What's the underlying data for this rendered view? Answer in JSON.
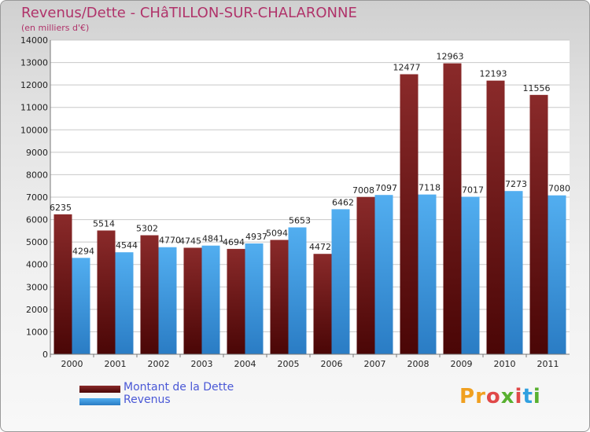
{
  "chart_data": {
    "type": "bar",
    "title": "Revenus/Dette - CHâTILLON-SUR-CHALARONNE",
    "subtitle": "(en milliers d'€)",
    "categories": [
      "2000",
      "2001",
      "2002",
      "2003",
      "2004",
      "2005",
      "2006",
      "2007",
      "2008",
      "2009",
      "2010",
      "2011"
    ],
    "series": [
      {
        "name": "Montant de la Dette",
        "values": [
          6235,
          5514,
          5302,
          4745,
          4694,
          5094,
          4472,
          7008,
          12477,
          12963,
          12193,
          11556
        ],
        "color": "#7b1a1a"
      },
      {
        "name": "Revenus",
        "values": [
          4294,
          4544,
          4770,
          4841,
          4937,
          5653,
          6462,
          7097,
          7118,
          7017,
          7273,
          7080
        ],
        "color": "#3d9be0"
      }
    ],
    "ylim": [
      0,
      14000
    ],
    "yticks": [
      0,
      1000,
      2000,
      3000,
      4000,
      5000,
      6000,
      7000,
      8000,
      9000,
      10000,
      11000,
      12000,
      13000,
      14000
    ],
    "grid": true,
    "legend_position": "bottom-left"
  },
  "logo": {
    "text": "Proxiti"
  }
}
